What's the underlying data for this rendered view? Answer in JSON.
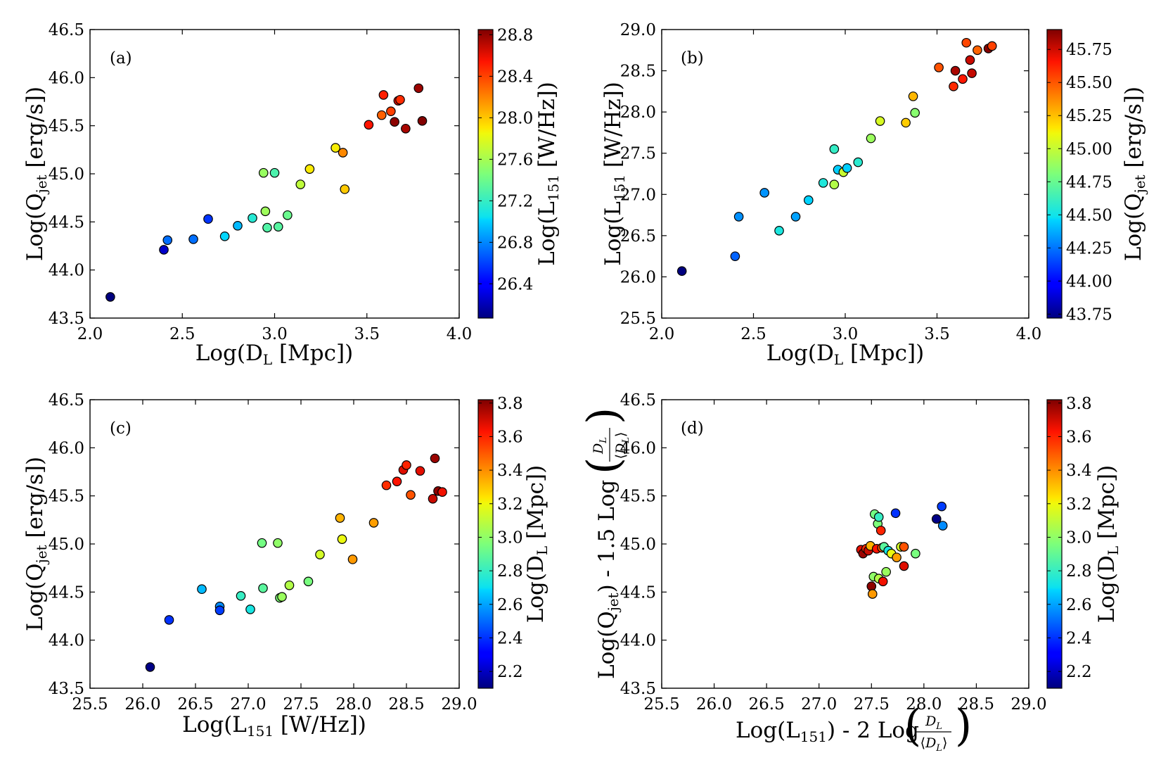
{
  "chart_data": [
    {
      "type": "scatter",
      "panel_label": "(a)",
      "xlabel": "Log(D_L [Mpc])",
      "ylabel": "Log(Q_jet [erg/s])",
      "colorbar_label": "Log(L_151 [W/Hz])",
      "xlim": [
        2.0,
        4.0
      ],
      "ylim": [
        43.5,
        46.5
      ],
      "xticks": [
        "2.0",
        "2.5",
        "3.0",
        "3.5",
        "4.0"
      ],
      "yticks": [
        "43.5",
        "44.0",
        "44.5",
        "45.0",
        "45.5",
        "46.0",
        "46.5"
      ],
      "clim": [
        26.07,
        28.85
      ],
      "cticks": [
        "26.4",
        "26.8",
        "27.2",
        "27.6",
        "28.0",
        "28.4",
        "28.8"
      ],
      "points": [
        {
          "x": 2.11,
          "y": 43.72,
          "c": 26.07
        },
        {
          "x": 2.4,
          "y": 44.21,
          "c": 26.25
        },
        {
          "x": 2.42,
          "y": 44.31,
          "c": 26.73
        },
        {
          "x": 2.56,
          "y": 44.32,
          "c": 26.73
        },
        {
          "x": 2.64,
          "y": 44.53,
          "c": 26.56
        },
        {
          "x": 2.73,
          "y": 44.35,
          "c": 27.02
        },
        {
          "x": 2.8,
          "y": 44.46,
          "c": 26.94
        },
        {
          "x": 2.88,
          "y": 44.54,
          "c": 27.14
        },
        {
          "x": 2.94,
          "y": 45.01,
          "c": 27.55
        },
        {
          "x": 2.95,
          "y": 44.61,
          "c": 27.57
        },
        {
          "x": 2.96,
          "y": 44.44,
          "c": 27.3
        },
        {
          "x": 3.0,
          "y": 45.01,
          "c": 27.28
        },
        {
          "x": 3.02,
          "y": 44.45,
          "c": 27.32
        },
        {
          "x": 3.07,
          "y": 44.57,
          "c": 27.39
        },
        {
          "x": 3.14,
          "y": 44.89,
          "c": 27.68
        },
        {
          "x": 3.19,
          "y": 45.05,
          "c": 27.89
        },
        {
          "x": 3.33,
          "y": 45.27,
          "c": 27.88
        },
        {
          "x": 3.37,
          "y": 45.22,
          "c": 28.19
        },
        {
          "x": 3.38,
          "y": 44.84,
          "c": 27.99
        },
        {
          "x": 3.51,
          "y": 45.51,
          "c": 28.54
        },
        {
          "x": 3.59,
          "y": 45.82,
          "c": 28.51
        },
        {
          "x": 3.58,
          "y": 45.61,
          "c": 28.31
        },
        {
          "x": 3.63,
          "y": 45.65,
          "c": 28.41
        },
        {
          "x": 3.65,
          "y": 45.54,
          "c": 28.82
        },
        {
          "x": 3.67,
          "y": 45.76,
          "c": 28.62
        },
        {
          "x": 3.68,
          "y": 45.77,
          "c": 28.47
        },
        {
          "x": 3.71,
          "y": 45.47,
          "c": 28.75
        },
        {
          "x": 3.78,
          "y": 45.89,
          "c": 28.78
        },
        {
          "x": 3.8,
          "y": 45.55,
          "c": 28.84
        }
      ]
    },
    {
      "type": "scatter",
      "panel_label": "(b)",
      "xlabel": "Log(D_L [Mpc])",
      "ylabel": "Log(L_151 [W/Hz])",
      "colorbar_label": "Log(Q_jet [erg/s])",
      "xlim": [
        2.0,
        4.0
      ],
      "ylim": [
        25.5,
        29.0
      ],
      "xticks": [
        "2.0",
        "2.5",
        "3.0",
        "3.5",
        "4.0"
      ],
      "yticks": [
        "25.5",
        "26.0",
        "26.5",
        "27.0",
        "27.5",
        "28.0",
        "28.5",
        "29.0"
      ],
      "clim": [
        43.72,
        45.9
      ],
      "cticks": [
        "43.75",
        "44.00",
        "44.25",
        "44.50",
        "44.75",
        "45.00",
        "45.25",
        "45.50",
        "45.75"
      ],
      "points": [
        {
          "x": 2.11,
          "y": 26.07,
          "c": 43.72
        },
        {
          "x": 2.4,
          "y": 26.25,
          "c": 44.21
        },
        {
          "x": 2.42,
          "y": 26.73,
          "c": 44.31
        },
        {
          "x": 2.56,
          "y": 27.02,
          "c": 44.32
        },
        {
          "x": 2.64,
          "y": 26.56,
          "c": 44.53
        },
        {
          "x": 2.73,
          "y": 26.73,
          "c": 44.35
        },
        {
          "x": 2.8,
          "y": 26.93,
          "c": 44.46
        },
        {
          "x": 2.88,
          "y": 27.14,
          "c": 44.54
        },
        {
          "x": 2.94,
          "y": 27.55,
          "c": 44.6
        },
        {
          "x": 2.94,
          "y": 27.12,
          "c": 44.95
        },
        {
          "x": 2.96,
          "y": 27.3,
          "c": 44.45
        },
        {
          "x": 2.99,
          "y": 27.27,
          "c": 45.01
        },
        {
          "x": 3.01,
          "y": 27.32,
          "c": 44.45
        },
        {
          "x": 3.07,
          "y": 27.39,
          "c": 44.57
        },
        {
          "x": 3.14,
          "y": 27.68,
          "c": 44.89
        },
        {
          "x": 3.19,
          "y": 27.89,
          "c": 45.05
        },
        {
          "x": 3.33,
          "y": 27.87,
          "c": 45.22
        },
        {
          "x": 3.37,
          "y": 28.19,
          "c": 45.27
        },
        {
          "x": 3.38,
          "y": 27.99,
          "c": 44.84
        },
        {
          "x": 3.51,
          "y": 28.54,
          "c": 45.51
        },
        {
          "x": 3.59,
          "y": 28.31,
          "c": 45.61
        },
        {
          "x": 3.6,
          "y": 28.5,
          "c": 45.82
        },
        {
          "x": 3.64,
          "y": 28.4,
          "c": 45.65
        },
        {
          "x": 3.66,
          "y": 28.84,
          "c": 45.54
        },
        {
          "x": 3.68,
          "y": 28.63,
          "c": 45.76
        },
        {
          "x": 3.69,
          "y": 28.47,
          "c": 45.77
        },
        {
          "x": 3.72,
          "y": 28.75,
          "c": 45.47
        },
        {
          "x": 3.78,
          "y": 28.77,
          "c": 45.89
        },
        {
          "x": 3.8,
          "y": 28.8,
          "c": 45.55
        }
      ]
    },
    {
      "type": "scatter",
      "panel_label": "(c)",
      "xlabel": "Log(L_151 [W/Hz])",
      "ylabel": "Log(Q_jet [erg/s])",
      "colorbar_label": "Log(D_L [Mpc])",
      "xlim": [
        25.5,
        29.0
      ],
      "ylim": [
        43.5,
        46.5
      ],
      "xticks": [
        "25.5",
        "26.0",
        "26.5",
        "27.0",
        "27.5",
        "28.0",
        "28.5",
        "29.0"
      ],
      "yticks": [
        "43.5",
        "44.0",
        "44.5",
        "45.0",
        "45.5",
        "46.0",
        "46.5"
      ],
      "clim": [
        2.1,
        3.82
      ],
      "cticks": [
        "2.2",
        "2.4",
        "2.6",
        "2.8",
        "3.0",
        "3.2",
        "3.4",
        "3.6",
        "3.8"
      ],
      "points": [
        {
          "x": 26.07,
          "y": 43.72,
          "c": 2.11
        },
        {
          "x": 26.25,
          "y": 44.21,
          "c": 2.4
        },
        {
          "x": 26.56,
          "y": 44.53,
          "c": 2.64
        },
        {
          "x": 26.73,
          "y": 44.35,
          "c": 2.56
        },
        {
          "x": 26.73,
          "y": 44.31,
          "c": 2.42
        },
        {
          "x": 26.93,
          "y": 44.46,
          "c": 2.8
        },
        {
          "x": 27.02,
          "y": 44.32,
          "c": 2.73
        },
        {
          "x": 27.13,
          "y": 45.01,
          "c": 2.94
        },
        {
          "x": 27.14,
          "y": 44.54,
          "c": 2.88
        },
        {
          "x": 27.28,
          "y": 45.01,
          "c": 3.0
        },
        {
          "x": 27.3,
          "y": 44.44,
          "c": 2.96
        },
        {
          "x": 27.32,
          "y": 44.45,
          "c": 3.02
        },
        {
          "x": 27.39,
          "y": 44.57,
          "c": 3.07
        },
        {
          "x": 27.57,
          "y": 44.61,
          "c": 2.95
        },
        {
          "x": 27.68,
          "y": 44.89,
          "c": 3.14
        },
        {
          "x": 27.87,
          "y": 45.27,
          "c": 3.33
        },
        {
          "x": 27.89,
          "y": 45.05,
          "c": 3.19
        },
        {
          "x": 27.99,
          "y": 44.84,
          "c": 3.38
        },
        {
          "x": 28.19,
          "y": 45.22,
          "c": 3.37
        },
        {
          "x": 28.31,
          "y": 45.61,
          "c": 3.58
        },
        {
          "x": 28.41,
          "y": 45.65,
          "c": 3.63
        },
        {
          "x": 28.47,
          "y": 45.77,
          "c": 3.68
        },
        {
          "x": 28.5,
          "y": 45.82,
          "c": 3.6
        },
        {
          "x": 28.54,
          "y": 45.51,
          "c": 3.51
        },
        {
          "x": 28.63,
          "y": 45.76,
          "c": 3.67
        },
        {
          "x": 28.75,
          "y": 45.47,
          "c": 3.71
        },
        {
          "x": 28.77,
          "y": 45.89,
          "c": 3.78
        },
        {
          "x": 28.8,
          "y": 45.55,
          "c": 3.8
        },
        {
          "x": 28.84,
          "y": 45.54,
          "c": 3.65
        }
      ]
    },
    {
      "type": "scatter",
      "panel_label": "(d)",
      "xlabel": "Log(L_151) - 2 Log(D_L / ⟨D_L⟩)",
      "ylabel": "Log(Q_jet) - 1.5 Log(D_L / ⟨D_L⟩)",
      "colorbar_label": "Log(D_L [Mpc])",
      "xlim": [
        25.5,
        29.0
      ],
      "ylim": [
        43.5,
        46.5
      ],
      "xticks": [
        "25.5",
        "26.0",
        "26.5",
        "27.0",
        "27.5",
        "28.0",
        "28.5",
        "29.0"
      ],
      "yticks": [
        "43.5",
        "44.0",
        "44.5",
        "45.0",
        "45.5",
        "46.0",
        "46.5"
      ],
      "clim": [
        2.1,
        3.82
      ],
      "cticks": [
        "2.2",
        "2.4",
        "2.6",
        "2.8",
        "3.0",
        "3.2",
        "3.4",
        "3.6",
        "3.8"
      ],
      "points": [
        {
          "x": 27.4,
          "y": 44.94,
          "c": 3.67
        },
        {
          "x": 27.42,
          "y": 44.9,
          "c": 3.78
        },
        {
          "x": 27.45,
          "y": 44.95,
          "c": 3.58
        },
        {
          "x": 27.47,
          "y": 44.93,
          "c": 3.71
        },
        {
          "x": 27.49,
          "y": 44.98,
          "c": 3.33
        },
        {
          "x": 27.5,
          "y": 44.56,
          "c": 3.8
        },
        {
          "x": 27.51,
          "y": 44.48,
          "c": 3.38
        },
        {
          "x": 27.52,
          "y": 44.66,
          "c": 3.0
        },
        {
          "x": 27.53,
          "y": 45.31,
          "c": 2.94
        },
        {
          "x": 27.55,
          "y": 44.95,
          "c": 3.63
        },
        {
          "x": 27.56,
          "y": 45.21,
          "c": 2.96
        },
        {
          "x": 27.57,
          "y": 45.28,
          "c": 2.8
        },
        {
          "x": 27.57,
          "y": 44.64,
          "c": 3.07
        },
        {
          "x": 27.59,
          "y": 45.14,
          "c": 3.6
        },
        {
          "x": 27.6,
          "y": 44.96,
          "c": 3.51
        },
        {
          "x": 27.61,
          "y": 44.61,
          "c": 3.65
        },
        {
          "x": 27.62,
          "y": 44.97,
          "c": 2.88
        },
        {
          "x": 27.64,
          "y": 44.71,
          "c": 3.02
        },
        {
          "x": 27.66,
          "y": 44.93,
          "c": 2.73
        },
        {
          "x": 27.69,
          "y": 44.9,
          "c": 3.19
        },
        {
          "x": 27.73,
          "y": 45.32,
          "c": 2.4
        },
        {
          "x": 27.74,
          "y": 44.86,
          "c": 3.37
        },
        {
          "x": 27.78,
          "y": 44.97,
          "c": 3.14
        },
        {
          "x": 27.81,
          "y": 44.97,
          "c": 3.51
        },
        {
          "x": 27.81,
          "y": 44.77,
          "c": 3.68
        },
        {
          "x": 27.92,
          "y": 44.9,
          "c": 2.95
        },
        {
          "x": 28.12,
          "y": 45.26,
          "c": 2.11
        },
        {
          "x": 28.17,
          "y": 45.39,
          "c": 2.42
        },
        {
          "x": 28.18,
          "y": 45.19,
          "c": 2.56
        }
      ]
    }
  ]
}
